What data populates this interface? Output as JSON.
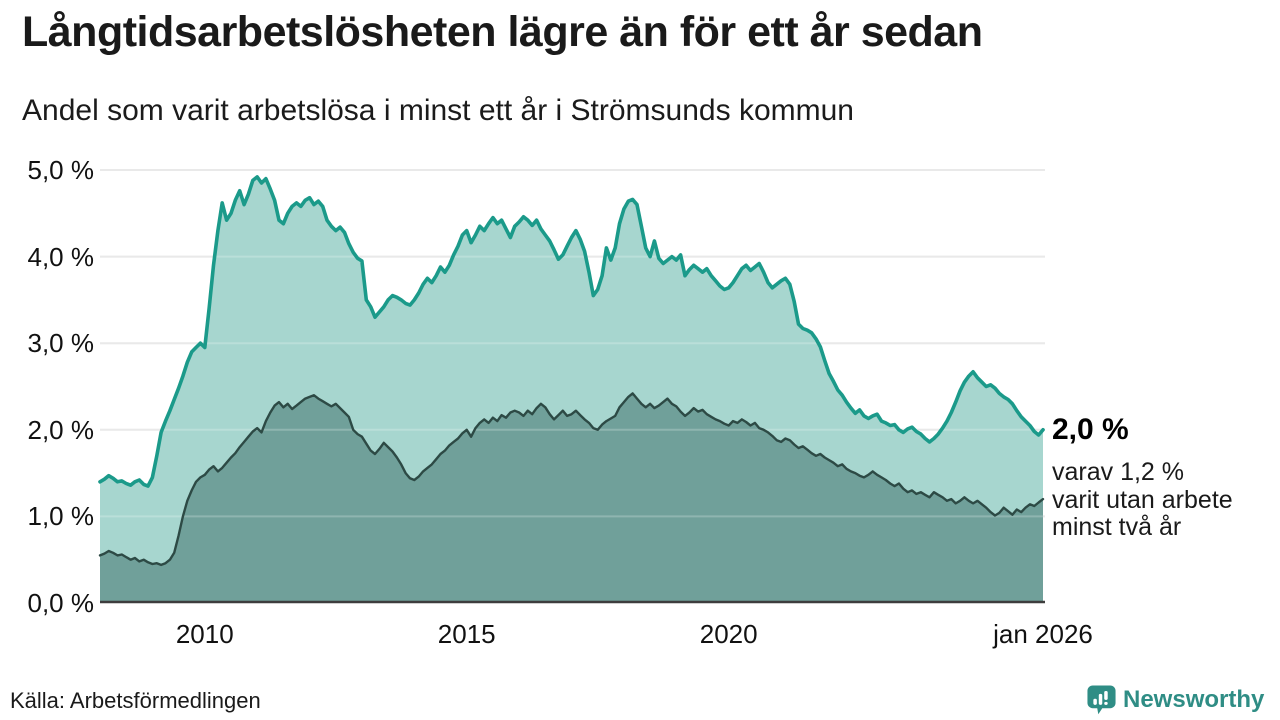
{
  "header": {
    "title": "Långtidsarbetslösheten lägre än för ett år sedan",
    "subtitle": "Andel som varit arbetslösa i minst ett år i Strömsunds kommun"
  },
  "chart_data": {
    "type": "area",
    "title": "Långtidsarbetslösheten lägre än för ett år sedan",
    "subtitle": "Andel som varit arbetslösa i minst ett år i Strömsunds kommun",
    "x_start": "jan 2008",
    "x_end": "jan 2026",
    "frequency": "monthly",
    "ylim": [
      0,
      5
    ],
    "grid": true,
    "y_ticks": [
      {
        "label": "5,0 %",
        "v": 5.0
      },
      {
        "label": "4,0 %",
        "v": 4.0
      },
      {
        "label": "3,0 %",
        "v": 3.0
      },
      {
        "label": "2,0 %",
        "v": 2.0
      },
      {
        "label": "1,0 %",
        "v": 1.0
      },
      {
        "label": "0,0 %",
        "v": 0.0
      }
    ],
    "x_ticks": [
      {
        "label": "2010",
        "t": 24
      },
      {
        "label": "2015",
        "t": 84
      },
      {
        "label": "2020",
        "t": 144
      },
      {
        "label": "jan 2026",
        "t": 216
      }
    ],
    "colors": {
      "series1_line": "#1b9a8a",
      "series1_fill": "#a7d6cf",
      "series2_line": "#2d4a45",
      "series2_fill": "#70a09a",
      "gridline": "#e3e3e3",
      "baseline": "#3d3d3d"
    },
    "series": [
      {
        "name": "Arbetslösa minst ett år",
        "last_value_pct": 2.0,
        "values": [
          1.4,
          1.43,
          1.47,
          1.44,
          1.4,
          1.41,
          1.38,
          1.36,
          1.4,
          1.42,
          1.37,
          1.35,
          1.45,
          1.7,
          1.97,
          2.1,
          2.22,
          2.35,
          2.48,
          2.62,
          2.78,
          2.9,
          2.95,
          3.0,
          2.95,
          3.4,
          3.9,
          4.3,
          4.62,
          4.42,
          4.5,
          4.65,
          4.76,
          4.6,
          4.72,
          4.88,
          4.92,
          4.85,
          4.9,
          4.78,
          4.65,
          4.42,
          4.38,
          4.5,
          4.58,
          4.62,
          4.58,
          4.65,
          4.68,
          4.6,
          4.64,
          4.58,
          4.42,
          4.35,
          4.3,
          4.34,
          4.28,
          4.15,
          4.05,
          3.98,
          3.95,
          3.5,
          3.42,
          3.3,
          3.36,
          3.42,
          3.5,
          3.55,
          3.53,
          3.5,
          3.46,
          3.44,
          3.5,
          3.58,
          3.68,
          3.75,
          3.7,
          3.78,
          3.88,
          3.82,
          3.9,
          4.02,
          4.12,
          4.25,
          4.3,
          4.16,
          4.25,
          4.35,
          4.3,
          4.38,
          4.45,
          4.38,
          4.42,
          4.32,
          4.22,
          4.35,
          4.4,
          4.46,
          4.42,
          4.36,
          4.42,
          4.32,
          4.25,
          4.18,
          4.08,
          3.97,
          4.02,
          4.12,
          4.22,
          4.3,
          4.2,
          4.06,
          3.82,
          3.55,
          3.62,
          3.78,
          4.1,
          3.96,
          4.1,
          4.38,
          4.55,
          4.64,
          4.66,
          4.6,
          4.35,
          4.1,
          4.0,
          4.18,
          3.98,
          3.92,
          3.96,
          4.0,
          3.96,
          4.02,
          3.78,
          3.85,
          3.9,
          3.86,
          3.82,
          3.86,
          3.78,
          3.72,
          3.66,
          3.62,
          3.64,
          3.7,
          3.78,
          3.86,
          3.9,
          3.84,
          3.88,
          3.92,
          3.82,
          3.7,
          3.64,
          3.68,
          3.72,
          3.75,
          3.68,
          3.48,
          3.22,
          3.17,
          3.15,
          3.12,
          3.05,
          2.96,
          2.8,
          2.65,
          2.56,
          2.46,
          2.4,
          2.32,
          2.25,
          2.19,
          2.23,
          2.16,
          2.13,
          2.16,
          2.18,
          2.1,
          2.08,
          2.05,
          2.06,
          2.0,
          1.97,
          2.01,
          2.03,
          1.98,
          1.95,
          1.9,
          1.86,
          1.9,
          1.95,
          2.02,
          2.1,
          2.2,
          2.32,
          2.45,
          2.55,
          2.62,
          2.67,
          2.6,
          2.55,
          2.5,
          2.52,
          2.48,
          2.42,
          2.38,
          2.35,
          2.3,
          2.22,
          2.15,
          2.1,
          2.05,
          1.98,
          1.94,
          2.0
        ]
      },
      {
        "name": "Arbetslösa minst två år",
        "last_value_pct": 1.2,
        "values": [
          0.55,
          0.57,
          0.6,
          0.58,
          0.55,
          0.56,
          0.53,
          0.5,
          0.52,
          0.48,
          0.5,
          0.47,
          0.45,
          0.46,
          0.44,
          0.46,
          0.5,
          0.58,
          0.78,
          1.0,
          1.18,
          1.3,
          1.4,
          1.45,
          1.48,
          1.54,
          1.58,
          1.52,
          1.56,
          1.62,
          1.68,
          1.73,
          1.8,
          1.86,
          1.92,
          1.98,
          2.02,
          1.97,
          2.1,
          2.2,
          2.28,
          2.32,
          2.26,
          2.3,
          2.24,
          2.28,
          2.32,
          2.36,
          2.38,
          2.4,
          2.36,
          2.33,
          2.3,
          2.27,
          2.3,
          2.25,
          2.2,
          2.15,
          2.0,
          1.95,
          1.92,
          1.84,
          1.76,
          1.72,
          1.78,
          1.85,
          1.8,
          1.75,
          1.68,
          1.6,
          1.5,
          1.44,
          1.42,
          1.46,
          1.52,
          1.56,
          1.6,
          1.66,
          1.72,
          1.76,
          1.82,
          1.86,
          1.9,
          1.96,
          2.0,
          1.92,
          2.02,
          2.08,
          2.12,
          2.08,
          2.14,
          2.1,
          2.17,
          2.14,
          2.2,
          2.22,
          2.2,
          2.16,
          2.22,
          2.18,
          2.25,
          2.3,
          2.26,
          2.18,
          2.12,
          2.17,
          2.22,
          2.16,
          2.18,
          2.22,
          2.17,
          2.12,
          2.08,
          2.02,
          2.0,
          2.06,
          2.1,
          2.13,
          2.16,
          2.26,
          2.32,
          2.38,
          2.42,
          2.36,
          2.3,
          2.26,
          2.3,
          2.25,
          2.28,
          2.32,
          2.36,
          2.3,
          2.27,
          2.21,
          2.16,
          2.2,
          2.25,
          2.21,
          2.23,
          2.18,
          2.15,
          2.12,
          2.1,
          2.07,
          2.05,
          2.1,
          2.08,
          2.12,
          2.09,
          2.05,
          2.08,
          2.02,
          2.0,
          1.97,
          1.93,
          1.88,
          1.86,
          1.9,
          1.88,
          1.83,
          1.79,
          1.81,
          1.77,
          1.73,
          1.7,
          1.72,
          1.68,
          1.65,
          1.62,
          1.58,
          1.6,
          1.55,
          1.52,
          1.5,
          1.47,
          1.45,
          1.48,
          1.52,
          1.48,
          1.45,
          1.42,
          1.38,
          1.35,
          1.38,
          1.32,
          1.28,
          1.3,
          1.26,
          1.28,
          1.25,
          1.22,
          1.28,
          1.25,
          1.22,
          1.18,
          1.2,
          1.15,
          1.18,
          1.22,
          1.18,
          1.15,
          1.18,
          1.14,
          1.1,
          1.05,
          1.01,
          1.04,
          1.1,
          1.06,
          1.02,
          1.08,
          1.05,
          1.1,
          1.14,
          1.12,
          1.16,
          1.2
        ]
      }
    ],
    "annotation": {
      "value_label": "2,0 %",
      "detail_lines": [
        "varav 1,2 %",
        "varit utan arbete",
        "minst två år"
      ]
    }
  },
  "footer": {
    "source": "Källa: Arbetsförmedlingen",
    "brand": "Newsworthy",
    "brand_color": "#2f8d85"
  }
}
